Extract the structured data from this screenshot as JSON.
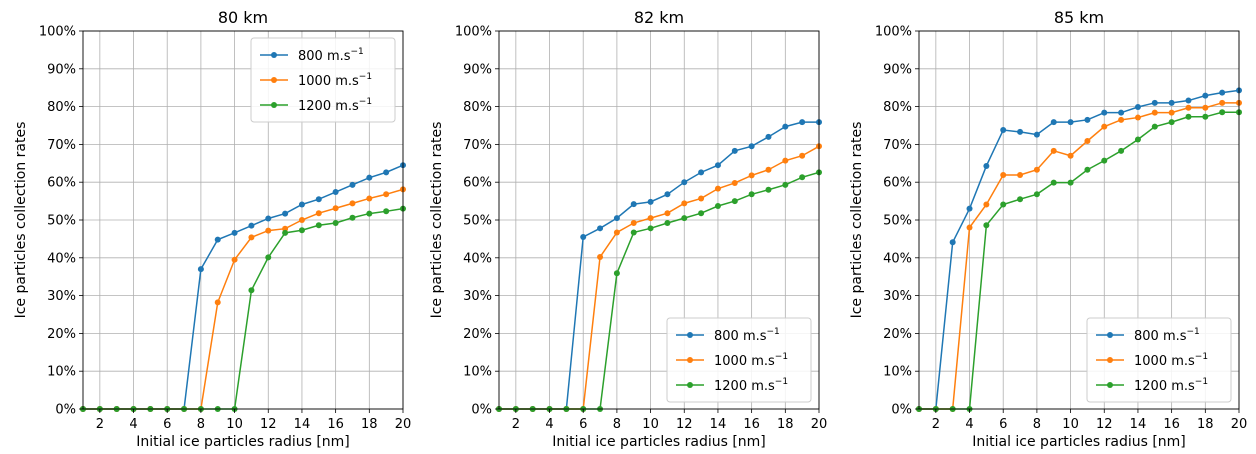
{
  "chart_data": [
    {
      "type": "line",
      "title": "80 km",
      "xlabel": "Initial ice particles radius [nm]",
      "ylabel": "Ice particles collection rates",
      "xlim": [
        1,
        20
      ],
      "ylim": [
        0,
        100
      ],
      "xticks": [
        2,
        4,
        6,
        8,
        10,
        12,
        14,
        16,
        18,
        20
      ],
      "yticks": [
        "0%",
        "10%",
        "20%",
        "30%",
        "40%",
        "50%",
        "60%",
        "70%",
        "80%",
        "90%",
        "100%"
      ],
      "grid": true,
      "legend_position": "upper right",
      "x": [
        1,
        2,
        3,
        4,
        5,
        6,
        7,
        8,
        9,
        10,
        11,
        12,
        13,
        14,
        15,
        16,
        17,
        18,
        19,
        20
      ],
      "series": [
        {
          "name": "800 m.s",
          "name_sup": "−1",
          "color": "#1f77b4",
          "values": [
            0,
            0,
            0,
            0,
            0,
            0,
            0,
            37,
            44.8,
            46.6,
            48.5,
            50.4,
            51.7,
            54.1,
            55.5,
            57.4,
            59.3,
            61.2,
            62.6,
            64.5
          ]
        },
        {
          "name": "1000 m.s",
          "name_sup": "−1",
          "color": "#ff7f0e",
          "values": [
            0,
            0,
            0,
            0,
            0,
            0,
            0,
            0,
            28.2,
            39.5,
            45.4,
            47.2,
            47.7,
            50,
            51.8,
            53.1,
            54.4,
            55.7,
            56.8,
            58.1
          ]
        },
        {
          "name": "1200 m.s",
          "name_sup": "−1",
          "color": "#2ca02c",
          "values": [
            0,
            0,
            0,
            0,
            0,
            0,
            0,
            0,
            0,
            0,
            31.4,
            40.1,
            46.6,
            47.3,
            48.6,
            49.2,
            50.6,
            51.7,
            52.3,
            53
          ]
        }
      ]
    },
    {
      "type": "line",
      "title": "82 km",
      "xlabel": "Initial ice particles radius [nm]",
      "ylabel": "Ice particles collection rates",
      "xlim": [
        1,
        20
      ],
      "ylim": [
        0,
        100
      ],
      "xticks": [
        2,
        4,
        6,
        8,
        10,
        12,
        14,
        16,
        18,
        20
      ],
      "yticks": [
        "0%",
        "10%",
        "20%",
        "30%",
        "40%",
        "50%",
        "60%",
        "70%",
        "80%",
        "90%",
        "100%"
      ],
      "grid": true,
      "legend_position": "lower right",
      "x": [
        1,
        2,
        3,
        4,
        5,
        6,
        7,
        8,
        9,
        10,
        11,
        12,
        13,
        14,
        15,
        16,
        17,
        18,
        19,
        20
      ],
      "series": [
        {
          "name": "800 m.s",
          "name_sup": "−1",
          "color": "#1f77b4",
          "values": [
            0,
            0,
            0,
            0,
            0,
            45.5,
            47.8,
            50.5,
            54.2,
            54.8,
            56.8,
            60,
            62.6,
            64.5,
            68.3,
            69.5,
            72,
            74.7,
            75.9,
            75.9
          ]
        },
        {
          "name": "1000 m.s",
          "name_sup": "−1",
          "color": "#ff7f0e",
          "values": [
            0,
            0,
            0,
            0,
            0,
            0,
            40.2,
            46.7,
            49.2,
            50.5,
            51.8,
            54.4,
            55.7,
            58.3,
            59.8,
            61.8,
            63.3,
            65.7,
            67,
            69.5
          ]
        },
        {
          "name": "1200 m.s",
          "name_sup": "−1",
          "color": "#2ca02c",
          "values": [
            0,
            0,
            0,
            0,
            0,
            0,
            0,
            35.9,
            46.7,
            47.8,
            49.2,
            50.5,
            51.8,
            53.7,
            55,
            56.8,
            58,
            59.3,
            61.3,
            62.6
          ]
        }
      ]
    },
    {
      "type": "line",
      "title": "85 km",
      "xlabel": "Initial ice particles radius [nm]",
      "ylabel": "Ice particles collection rates",
      "xlim": [
        1,
        20
      ],
      "ylim": [
        0,
        100
      ],
      "xticks": [
        2,
        4,
        6,
        8,
        10,
        12,
        14,
        16,
        18,
        20
      ],
      "yticks": [
        "0%",
        "10%",
        "20%",
        "30%",
        "40%",
        "50%",
        "60%",
        "70%",
        "80%",
        "90%",
        "100%"
      ],
      "grid": true,
      "legend_position": "lower right",
      "x": [
        1,
        2,
        3,
        4,
        5,
        6,
        7,
        8,
        9,
        10,
        11,
        12,
        13,
        14,
        15,
        16,
        17,
        18,
        19,
        20
      ],
      "series": [
        {
          "name": "800 m.s",
          "name_sup": "−1",
          "color": "#1f77b4",
          "values": [
            0,
            0,
            44.1,
            53,
            64.3,
            73.8,
            73.3,
            72.6,
            75.9,
            75.9,
            76.5,
            78.4,
            78.4,
            79.9,
            81,
            81,
            81.6,
            82.9,
            83.7,
            84.3
          ]
        },
        {
          "name": "1000 m.s",
          "name_sup": "−1",
          "color": "#ff7f0e",
          "values": [
            0,
            0,
            0,
            48,
            54.1,
            61.9,
            61.9,
            63.3,
            68.3,
            67,
            70.9,
            74.7,
            76.5,
            77.1,
            78.4,
            78.4,
            79.7,
            79.7,
            81,
            81
          ]
        },
        {
          "name": "1200 m.s",
          "name_sup": "−1",
          "color": "#2ca02c",
          "values": [
            0,
            0,
            0,
            0,
            48.6,
            54.1,
            55.5,
            56.8,
            59.9,
            59.9,
            63.3,
            65.7,
            68.3,
            71.3,
            74.7,
            75.9,
            77.3,
            77.3,
            78.5,
            78.5
          ]
        }
      ]
    }
  ]
}
